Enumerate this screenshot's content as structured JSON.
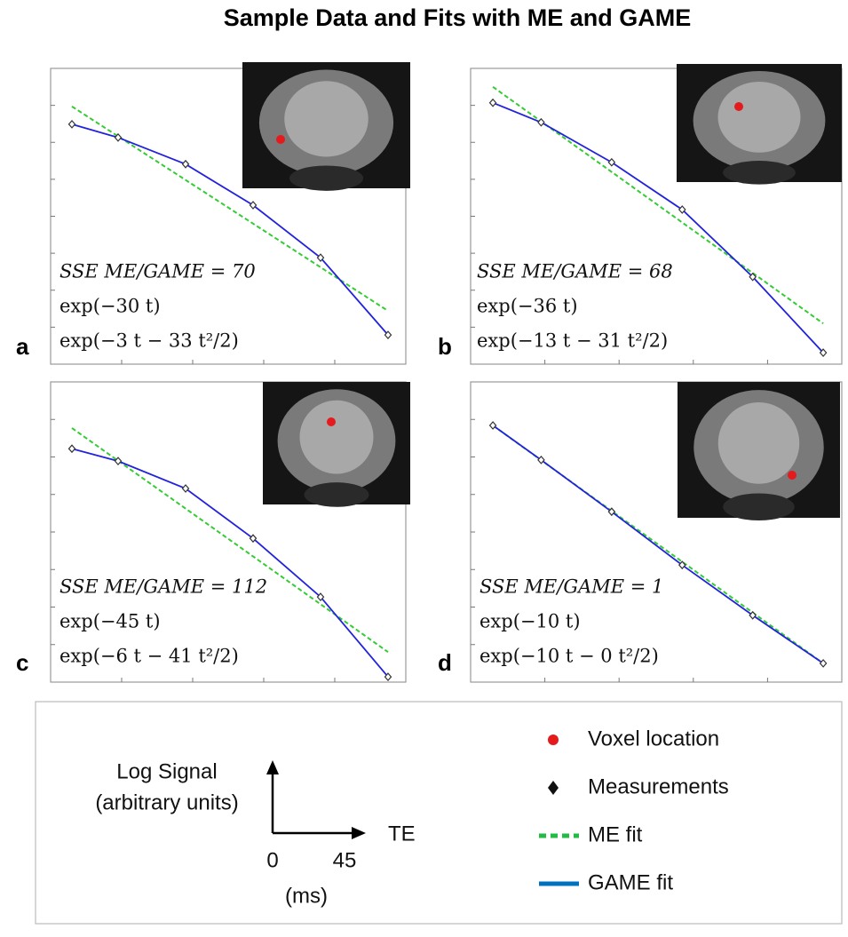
{
  "title": "Sample Data and Fits with ME and GAME",
  "chart_data": [
    {
      "type": "line",
      "panel_label": "a",
      "annotations": [
        "SSE ME/GAME = 70",
        "exp(−30 t)",
        "exp(−3 t − 33 t²/2)"
      ],
      "xlim": [
        0,
        10
      ],
      "ylim": [
        0,
        8
      ],
      "xticks": [
        2,
        4,
        6,
        8
      ],
      "yticks": [
        1,
        2,
        3,
        4,
        5,
        6,
        7
      ],
      "series": [
        {
          "style": "dashed",
          "color": "#33cc33",
          "x": [
            0.6,
            9.5
          ],
          "values": [
            6.97,
            1.44
          ]
        },
        {
          "style": "solid",
          "color": "#2222dd",
          "x": [
            0.6,
            1.9,
            3.8,
            5.7,
            7.6,
            9.5
          ],
          "values": [
            6.49,
            6.13,
            5.41,
            4.3,
            2.88,
            0.79
          ]
        },
        {
          "style": "marker",
          "color": "#333333",
          "x": [
            0.6,
            1.9,
            3.8,
            5.7,
            7.6,
            9.5
          ],
          "values": [
            6.49,
            6.13,
            5.41,
            4.3,
            2.88,
            0.79
          ]
        }
      ]
    },
    {
      "type": "line",
      "panel_label": "b",
      "annotations": [
        "SSE ME/GAME = 68",
        "exp(−36 t)",
        "exp(−13 t − 31 t²/2)"
      ],
      "xlim": [
        0,
        10
      ],
      "ylim": [
        0,
        8
      ],
      "xticks": [
        2,
        4,
        6,
        8
      ],
      "yticks": [
        1,
        2,
        3,
        4,
        5,
        6,
        7
      ],
      "series": [
        {
          "style": "dashed",
          "color": "#33cc33",
          "x": [
            0.6,
            9.5
          ],
          "values": [
            7.5,
            1.1
          ]
        },
        {
          "style": "solid",
          "color": "#2222dd",
          "x": [
            0.6,
            1.9,
            3.8,
            5.7,
            7.6,
            9.5
          ],
          "values": [
            7.07,
            6.54,
            5.46,
            4.18,
            2.36,
            0.31
          ]
        },
        {
          "style": "marker",
          "color": "#333333",
          "x": [
            0.6,
            1.9,
            3.8,
            5.7,
            7.6,
            9.5
          ],
          "values": [
            7.07,
            6.54,
            5.46,
            4.18,
            2.36,
            0.31
          ]
        }
      ]
    },
    {
      "type": "line",
      "panel_label": "c",
      "annotations": [
        "SSE ME/GAME = 112",
        "exp(−45 t)",
        "exp(−6 t − 41 t²/2)"
      ],
      "xlim": [
        0,
        10
      ],
      "ylim": [
        0,
        8
      ],
      "xticks": [
        2,
        4,
        6,
        8
      ],
      "yticks": [
        1,
        2,
        3,
        4,
        5,
        6,
        7
      ],
      "series": [
        {
          "style": "dashed",
          "color": "#33cc33",
          "x": [
            0.6,
            9.5
          ],
          "values": [
            6.77,
            0.8
          ]
        },
        {
          "style": "solid",
          "color": "#2222dd",
          "x": [
            0.6,
            1.9,
            3.8,
            5.7,
            7.6,
            9.5
          ],
          "values": [
            6.22,
            5.89,
            5.16,
            3.83,
            2.27,
            0.14
          ]
        },
        {
          "style": "marker",
          "color": "#333333",
          "x": [
            0.6,
            1.9,
            3.8,
            5.7,
            7.6,
            9.5
          ],
          "values": [
            6.22,
            5.89,
            5.16,
            3.83,
            2.27,
            0.14
          ]
        }
      ]
    },
    {
      "type": "line",
      "panel_label": "d",
      "annotations": [
        "SSE ME/GAME = 1",
        "exp(−10 t)",
        "exp(−10 t − 0 t²/2)"
      ],
      "xlim": [
        0,
        10
      ],
      "ylim": [
        0,
        8
      ],
      "xticks": [
        2,
        4,
        6,
        8
      ],
      "yticks": [
        1,
        2,
        3,
        4,
        5,
        6,
        7
      ],
      "series": [
        {
          "style": "dashed",
          "color": "#33cc33",
          "x": [
            0.6,
            9.5
          ],
          "values": [
            6.84,
            0.5
          ]
        },
        {
          "style": "solid",
          "color": "#2222dd",
          "x": [
            0.6,
            1.9,
            3.8,
            5.7,
            7.6,
            9.5
          ],
          "values": [
            6.84,
            5.92,
            4.54,
            3.12,
            1.78,
            0.5
          ]
        },
        {
          "style": "marker",
          "color": "#333333",
          "x": [
            0.6,
            1.9,
            3.8,
            5.7,
            7.6,
            9.5
          ],
          "values": [
            6.84,
            5.92,
            4.54,
            3.12,
            1.78,
            0.5
          ]
        }
      ]
    }
  ],
  "schematic": {
    "y_label": [
      "Log Signal",
      "(arbitrary units)"
    ],
    "x_label": "TE",
    "x_start": 0,
    "x_end": 45,
    "x_unit": "(ms)"
  },
  "legend": [
    {
      "label": "Voxel location",
      "symbol": "dot",
      "color": "#e41a1c"
    },
    {
      "label": "Measurements",
      "symbol": "diamond",
      "color": "#111111"
    },
    {
      "label": "ME fit",
      "symbol": "dashed",
      "color": "#22bb44"
    },
    {
      "label": "GAME fit",
      "symbol": "solid",
      "color": "#0070c0"
    }
  ]
}
